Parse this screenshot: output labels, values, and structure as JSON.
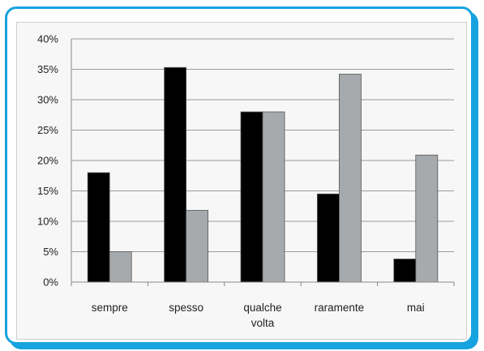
{
  "chart_data": {
    "type": "bar",
    "categories": [
      "sempre",
      "spesso",
      "qualche volta",
      "raramente",
      "mai"
    ],
    "category_lines": [
      [
        "sempre"
      ],
      [
        "spesso"
      ],
      [
        "qualche",
        "volta"
      ],
      [
        "raramente"
      ],
      [
        "mai"
      ]
    ],
    "series": [
      {
        "values": [
          18,
          35.3,
          28,
          14.5,
          3.8
        ],
        "color": "#000000"
      },
      {
        "values": [
          5,
          11.8,
          28,
          34.2,
          20.9
        ],
        "color": "#a6aaad"
      }
    ],
    "yticks": [
      "0%",
      "5%",
      "10%",
      "15%",
      "20%",
      "25%",
      "30%",
      "35%",
      "40%"
    ],
    "ylim": [
      0,
      40
    ],
    "ystep": 5,
    "grid": true,
    "legend": "none"
  },
  "colors": {
    "frame": "#17a3df",
    "grid": "#9a9a9a",
    "axis": "#888888"
  }
}
